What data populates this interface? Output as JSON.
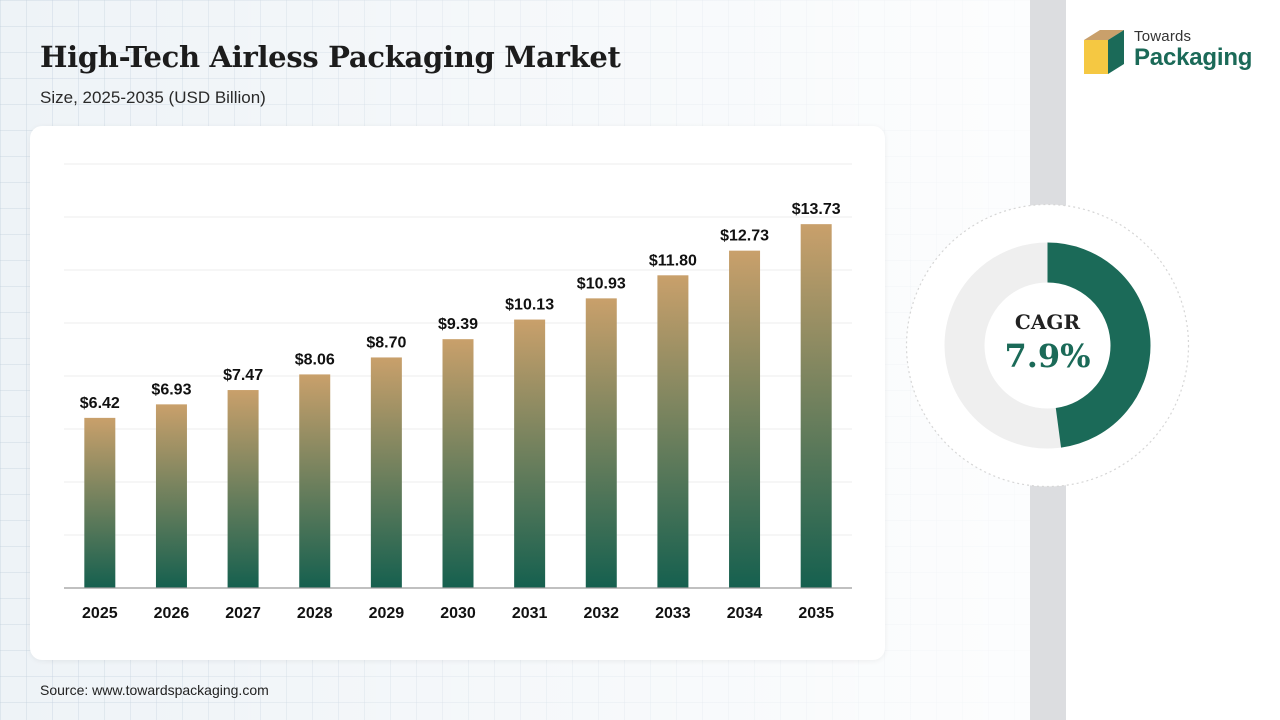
{
  "header": {
    "title": "High-Tech Airless Packaging Market",
    "subtitle": "Size, 2025-2035 (USD Billion)"
  },
  "brand": {
    "line1": "Towards",
    "line2": "Packaging",
    "logo_icon": "box-logo-icon",
    "colors": {
      "green": "#1b6a58",
      "tan": "#c9a06b",
      "yellow": "#f5c842"
    }
  },
  "source": "Source: www.towardspackaging.com",
  "cagr": {
    "label": "CAGR",
    "value": "7.9%",
    "fraction": 0.479,
    "colors": {
      "filled": "#1b6a58",
      "empty": "#efefef"
    }
  },
  "chart_data": {
    "type": "bar",
    "title": "High-Tech Airless Packaging Market",
    "xlabel": "",
    "ylabel": "",
    "categories": [
      "2025",
      "2026",
      "2027",
      "2028",
      "2029",
      "2030",
      "2031",
      "2032",
      "2033",
      "2034",
      "2035"
    ],
    "values": [
      6.42,
      6.93,
      7.47,
      8.06,
      8.7,
      9.39,
      10.13,
      10.93,
      11.8,
      12.73,
      13.73
    ],
    "labels": [
      "$6.42",
      "$6.93",
      "$7.47",
      "$8.06",
      "$8.70",
      "$9.39",
      "$10.13",
      "$10.93",
      "$11.80",
      "$12.73",
      "$13.73"
    ],
    "ylim": [
      0,
      16
    ],
    "grid": true,
    "legend": "none",
    "colors": {
      "bar_top": "#c9a06b",
      "bar_bottom": "#15604f"
    }
  }
}
